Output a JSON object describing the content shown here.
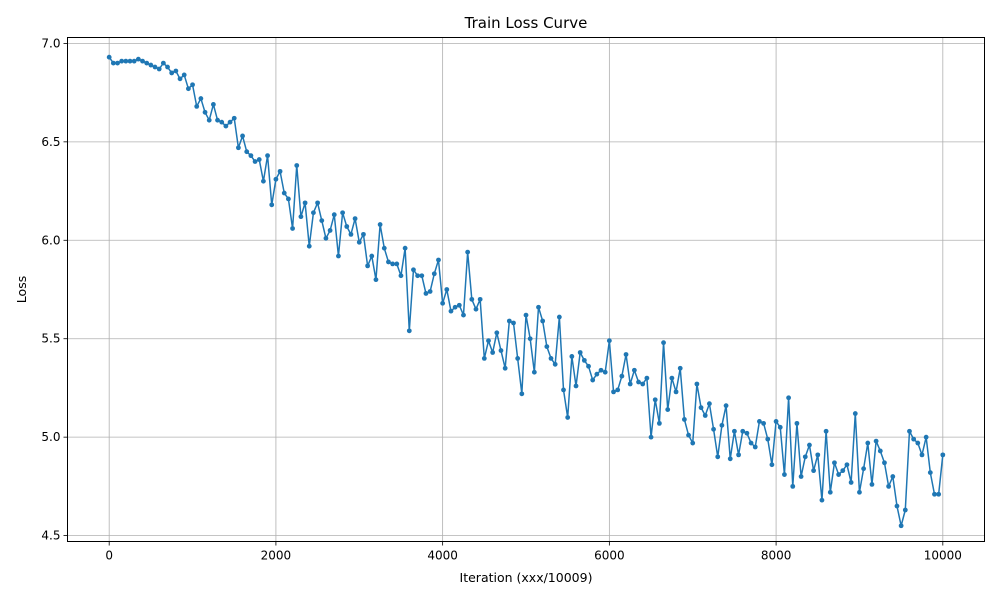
{
  "chart_data": {
    "type": "line",
    "title": "Train Loss Curve",
    "xlabel": "Iteration (xxx/10009)",
    "ylabel": "Loss",
    "xlim": [
      -500,
      10500
    ],
    "ylim": [
      4.47,
      7.03
    ],
    "xticks": [
      0,
      2000,
      4000,
      6000,
      8000,
      10000
    ],
    "xtick_labels": [
      "0",
      "2000",
      "4000",
      "6000",
      "8000",
      "10000"
    ],
    "yticks": [
      4.5,
      5.0,
      5.5,
      6.0,
      6.5,
      7.0
    ],
    "ytick_labels": [
      "4.5",
      "5.0",
      "5.5",
      "6.0",
      "6.5",
      "7.0"
    ],
    "grid": true,
    "series": [
      {
        "color": "#1f77b4",
        "marker": "circle",
        "x_start": 0,
        "x_step": 50,
        "values": [
          6.93,
          6.9,
          6.9,
          6.91,
          6.91,
          6.91,
          6.91,
          6.92,
          6.91,
          6.9,
          6.89,
          6.88,
          6.87,
          6.9,
          6.88,
          6.85,
          6.86,
          6.82,
          6.84,
          6.77,
          6.79,
          6.68,
          6.72,
          6.65,
          6.61,
          6.69,
          6.61,
          6.6,
          6.58,
          6.6,
          6.62,
          6.47,
          6.53,
          6.45,
          6.43,
          6.4,
          6.41,
          6.3,
          6.43,
          6.18,
          6.31,
          6.35,
          6.24,
          6.21,
          6.06,
          6.38,
          6.12,
          6.19,
          5.97,
          6.14,
          6.19,
          6.1,
          6.01,
          6.05,
          6.13,
          5.92,
          6.14,
          6.07,
          6.03,
          6.11,
          5.99,
          6.03,
          5.87,
          5.92,
          5.8,
          6.08,
          5.96,
          5.89,
          5.88,
          5.88,
          5.82,
          5.96,
          5.54,
          5.85,
          5.82,
          5.82,
          5.73,
          5.74,
          5.83,
          5.9,
          5.68,
          5.75,
          5.64,
          5.66,
          5.67,
          5.62,
          5.94,
          5.7,
          5.65,
          5.7,
          5.4,
          5.49,
          5.43,
          5.53,
          5.44,
          5.35,
          5.59,
          5.58,
          5.4,
          5.22,
          5.62,
          5.5,
          5.33,
          5.66,
          5.59,
          5.46,
          5.4,
          5.37,
          5.61,
          5.24,
          5.1,
          5.41,
          5.26,
          5.43,
          5.39,
          5.36,
          5.29,
          5.32,
          5.34,
          5.33,
          5.49,
          5.23,
          5.24,
          5.31,
          5.42,
          5.27,
          5.34,
          5.28,
          5.27,
          5.3,
          5.0,
          5.19,
          5.07,
          5.48,
          5.14,
          5.3,
          5.23,
          5.35,
          5.09,
          5.01,
          4.97,
          5.27,
          5.15,
          5.11,
          5.17,
          5.04,
          4.9,
          5.06,
          5.16,
          4.89,
          5.03,
          4.91,
          5.03,
          5.02,
          4.97,
          4.95,
          5.08,
          5.07,
          4.99,
          4.86,
          5.08,
          5.05,
          4.81,
          5.2,
          4.75,
          5.07,
          4.8,
          4.9,
          4.96,
          4.83,
          4.91,
          4.68,
          5.03,
          4.72,
          4.87,
          4.81,
          4.83,
          4.86,
          4.77,
          5.12,
          4.72,
          4.84,
          4.97,
          4.76,
          4.98,
          4.93,
          4.87,
          4.75,
          4.8,
          4.65,
          4.55,
          4.63,
          5.03,
          4.99,
          4.97,
          4.91,
          5.0,
          4.82,
          4.71,
          4.71,
          4.91
        ]
      }
    ]
  }
}
